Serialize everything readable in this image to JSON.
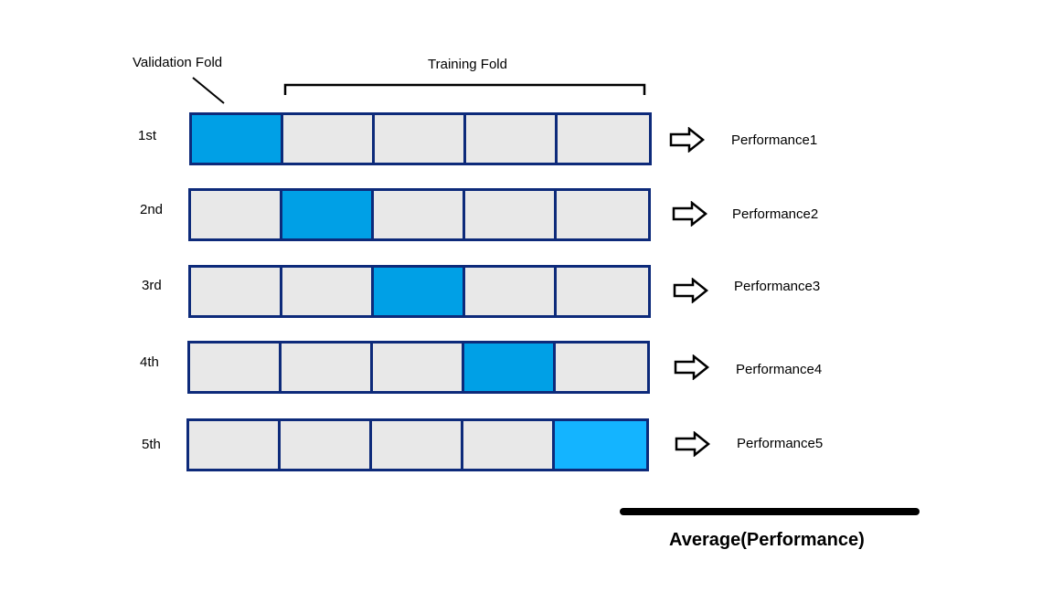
{
  "header": {
    "validation_label": "Validation Fold",
    "training_label": "Training Fold"
  },
  "rows": [
    {
      "label": "1st",
      "validation_index": 0,
      "performance": "Performance1"
    },
    {
      "label": "2nd",
      "validation_index": 1,
      "performance": "Performance2"
    },
    {
      "label": "3rd",
      "validation_index": 2,
      "performance": "Performance3"
    },
    {
      "label": "4th",
      "validation_index": 3,
      "performance": "Performance4"
    },
    {
      "label": "5th",
      "validation_index": 4,
      "performance": "Performance5"
    }
  ],
  "footer": {
    "average_label": "Average(Performance)"
  },
  "colors": {
    "border": "#0d2a7a",
    "fold": "#e8e8e8",
    "validation": "#00a0e6",
    "validation_last": "#14b4ff"
  }
}
